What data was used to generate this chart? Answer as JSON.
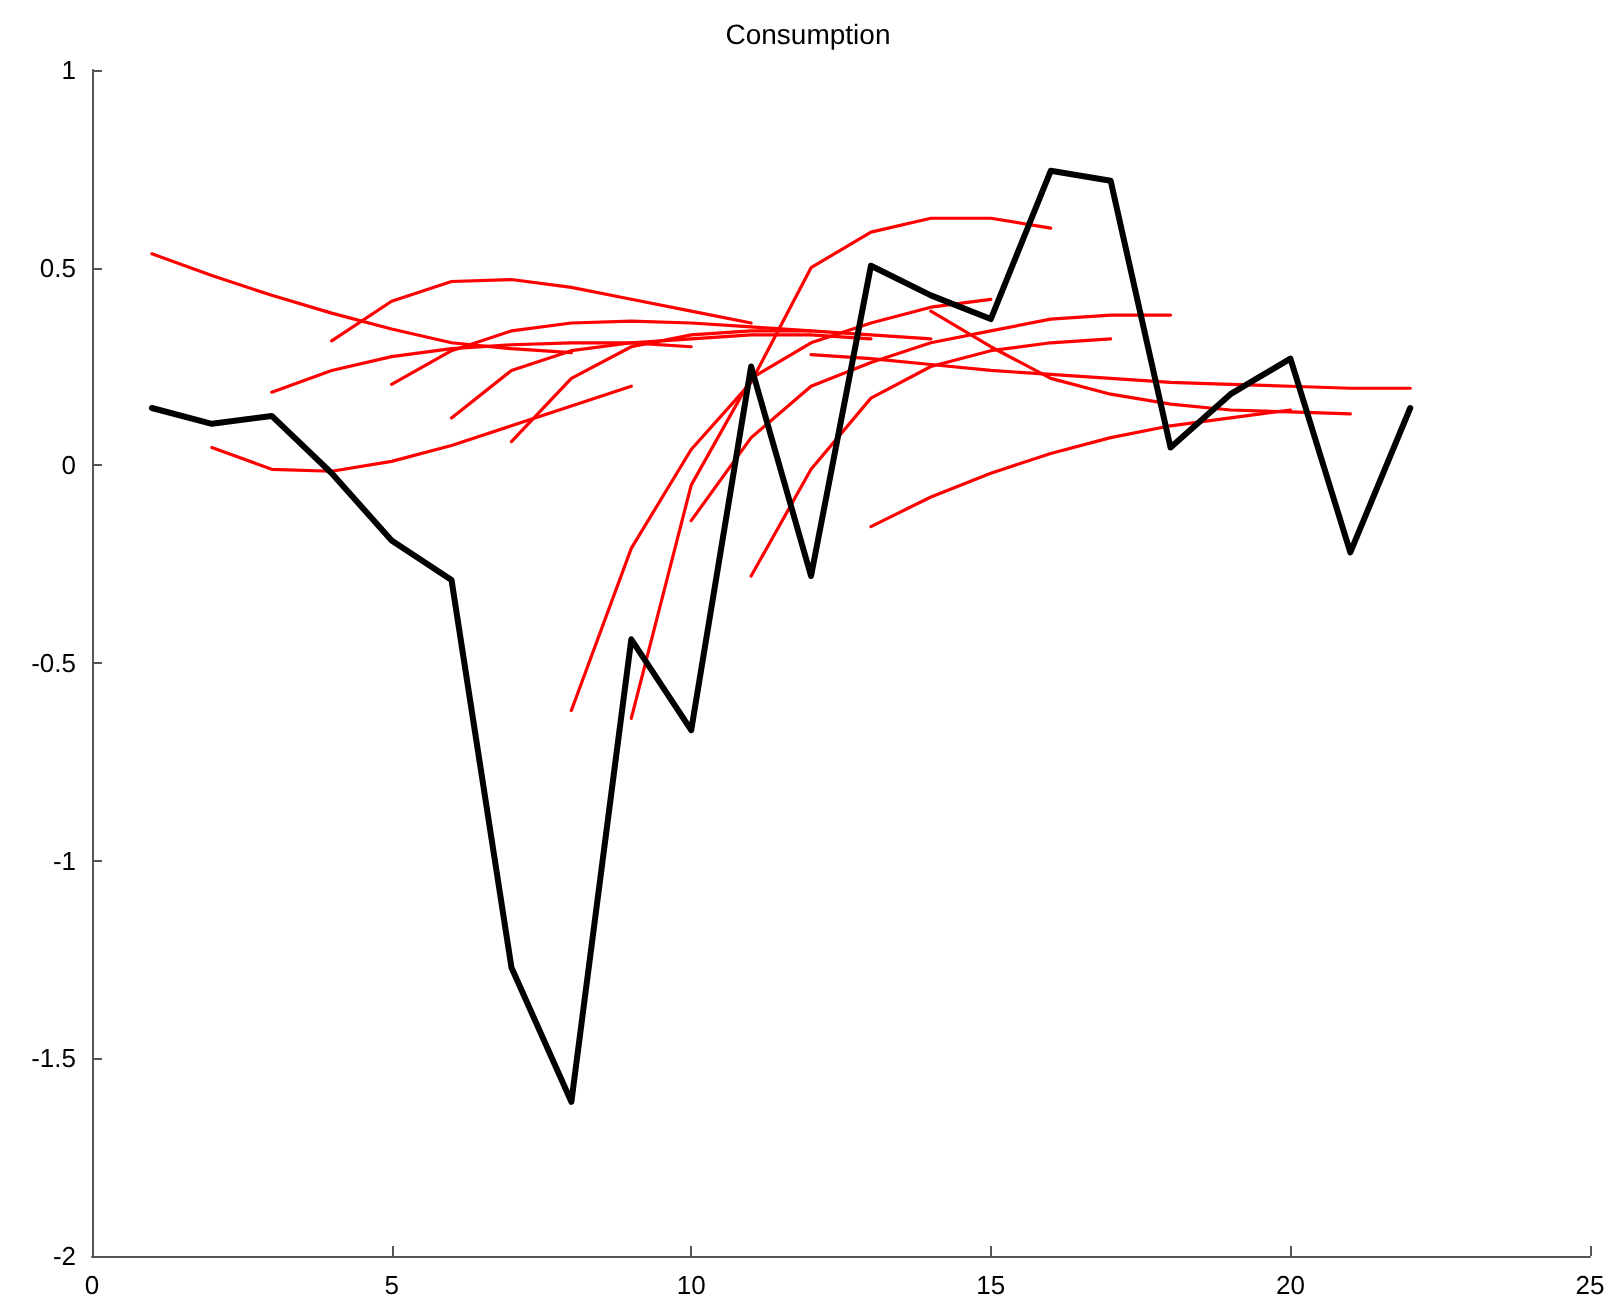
{
  "chart_data": {
    "type": "line",
    "title": "Consumption",
    "xlim": [
      0,
      25
    ],
    "xticks": [
      0,
      5,
      10,
      15,
      20,
      25
    ],
    "ylim": [
      -2,
      1
    ],
    "yticks": [
      -2,
      -1.5,
      -1,
      -0.5,
      0,
      0.5,
      1
    ],
    "marker": "none",
    "series": [
      {
        "color": "#ff0000",
        "x": [
          1,
          2,
          3,
          4,
          5,
          6,
          7,
          8
        ],
        "values": [
          0.535,
          0.48,
          0.43,
          0.385,
          0.345,
          0.31,
          0.295,
          0.285
        ]
      },
      {
        "color": "#ff0000",
        "x": [
          2,
          3,
          4,
          5,
          6,
          7,
          8,
          9
        ],
        "values": [
          0.045,
          -0.01,
          -0.015,
          0.01,
          0.05,
          0.1,
          0.15,
          0.2
        ]
      },
      {
        "color": "#ff0000",
        "x": [
          3,
          4,
          5,
          6,
          7,
          8,
          9,
          10
        ],
        "values": [
          0.185,
          0.24,
          0.275,
          0.295,
          0.305,
          0.31,
          0.31,
          0.3
        ]
      },
      {
        "color": "#ff0000",
        "x": [
          4,
          5,
          6,
          7,
          8,
          9,
          10,
          11
        ],
        "values": [
          0.315,
          0.415,
          0.465,
          0.47,
          0.45,
          0.42,
          0.39,
          0.36
        ]
      },
      {
        "color": "#ff0000",
        "x": [
          5,
          6,
          7,
          8,
          9,
          10,
          11,
          12
        ],
        "values": [
          0.205,
          0.29,
          0.34,
          0.36,
          0.365,
          0.36,
          0.35,
          0.34
        ]
      },
      {
        "color": "#ff0000",
        "x": [
          6,
          7,
          8,
          9,
          10,
          11,
          12,
          13
        ],
        "values": [
          0.12,
          0.24,
          0.29,
          0.31,
          0.32,
          0.33,
          0.33,
          0.32
        ]
      },
      {
        "color": "#ff0000",
        "x": [
          7,
          8,
          9,
          10,
          11,
          12,
          13,
          14
        ],
        "values": [
          0.06,
          0.22,
          0.3,
          0.33,
          0.34,
          0.34,
          0.33,
          0.32
        ]
      },
      {
        "color": "#ff0000",
        "x": [
          8,
          9,
          10,
          11,
          12,
          13,
          14,
          15,
          16
        ],
        "values": [
          -0.62,
          -0.21,
          0.04,
          0.21,
          0.5,
          0.59,
          0.625,
          0.625,
          0.6
        ]
      },
      {
        "color": "#ff0000",
        "x": [
          9,
          10,
          11,
          12,
          13,
          14,
          15
        ],
        "values": [
          -0.64,
          -0.05,
          0.22,
          0.31,
          0.36,
          0.4,
          0.42
        ]
      },
      {
        "color": "#ff0000",
        "x": [
          10,
          11,
          12,
          13,
          14,
          15,
          16,
          17,
          18
        ],
        "values": [
          -0.14,
          0.07,
          0.2,
          0.26,
          0.31,
          0.34,
          0.37,
          0.38,
          0.38
        ]
      },
      {
        "color": "#ff0000",
        "x": [
          11,
          12,
          13,
          14,
          15,
          16,
          17
        ],
        "values": [
          -0.28,
          -0.01,
          0.17,
          0.25,
          0.29,
          0.31,
          0.32
        ]
      },
      {
        "color": "#ff0000",
        "x": [
          12,
          13,
          14,
          15,
          16,
          17,
          18,
          19,
          20,
          21,
          22
        ],
        "values": [
          0.28,
          0.27,
          0.255,
          0.24,
          0.23,
          0.22,
          0.21,
          0.205,
          0.2,
          0.195,
          0.195
        ]
      },
      {
        "color": "#ff0000",
        "x": [
          13,
          14,
          15,
          16,
          17,
          18,
          19,
          20
        ],
        "values": [
          -0.155,
          -0.08,
          -0.02,
          0.03,
          0.07,
          0.1,
          0.12,
          0.14
        ]
      },
      {
        "color": "#ff0000",
        "x": [
          14,
          15,
          16,
          17,
          18,
          19,
          20,
          21
        ],
        "values": [
          0.39,
          0.3,
          0.22,
          0.18,
          0.155,
          0.14,
          0.135,
          0.13
        ]
      },
      {
        "color": "#000000",
        "x": [
          1,
          2,
          3,
          4,
          5,
          6,
          7,
          8,
          9,
          10,
          11,
          12,
          13,
          14,
          15,
          16,
          17,
          18,
          19,
          20,
          21,
          22
        ],
        "values": [
          0.145,
          0.105,
          0.125,
          -0.02,
          -0.19,
          -0.29,
          -1.27,
          -1.61,
          -0.44,
          -0.67,
          0.25,
          -0.28,
          0.505,
          0.43,
          0.37,
          0.745,
          0.72,
          0.045,
          0.18,
          0.27,
          -0.22,
          0.145
        ]
      }
    ]
  }
}
